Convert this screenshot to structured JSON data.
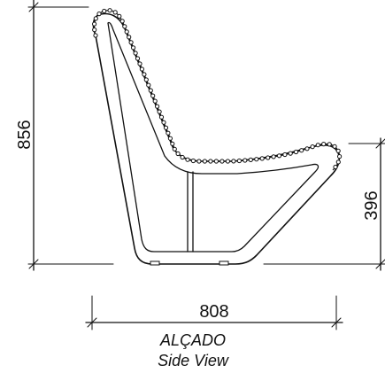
{
  "dimensions": {
    "overall_height": "856",
    "seat_height": "396",
    "overall_width": "808"
  },
  "caption": {
    "title": "ALÇADO",
    "subtitle": "Side View"
  }
}
